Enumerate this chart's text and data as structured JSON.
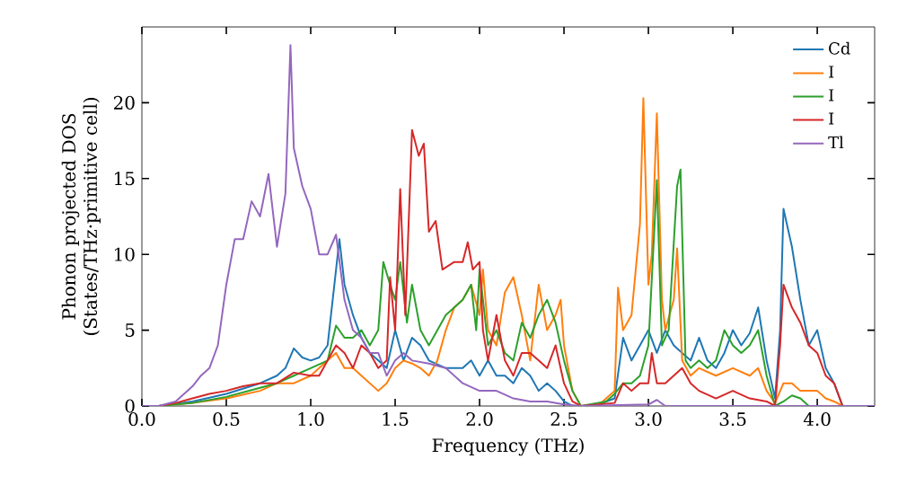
{
  "chart_data": {
    "type": "line",
    "xlabel": "Frequency (THz)",
    "ylabel": "Phonon projected DOS (States/THz·primitive cell)",
    "xlim": [
      0,
      4.34
    ],
    "ylim": [
      0,
      25
    ],
    "xticks": [
      {
        "value": 0,
        "label": "0.0"
      },
      0.5,
      {
        "value": 1,
        "label": "1.0"
      },
      1.5,
      {
        "value": 2,
        "label": "2.0"
      },
      2.5,
      {
        "value": 3,
        "label": "3.0"
      },
      3.5,
      {
        "value": 4,
        "label": "4.0"
      }
    ],
    "yticks": [
      0,
      5,
      10,
      15,
      20
    ],
    "legend": "top right",
    "grid": false,
    "marker": "none",
    "line_style": "solid",
    "series": [
      {
        "name": "Cd",
        "color": "#1f77b4",
        "x": [
          0,
          0.1,
          0.3,
          0.5,
          0.7,
          0.8,
          0.85,
          0.9,
          0.95,
          1.0,
          1.05,
          1.1,
          1.15,
          1.17,
          1.2,
          1.25,
          1.3,
          1.35,
          1.4,
          1.45,
          1.5,
          1.55,
          1.6,
          1.65,
          1.7,
          1.8,
          1.9,
          1.95,
          2.0,
          2.05,
          2.1,
          2.15,
          2.2,
          2.25,
          2.3,
          2.35,
          2.4,
          2.45,
          2.5,
          2.55,
          2.7,
          2.75,
          2.8,
          2.85,
          2.9,
          2.95,
          3.0,
          3.05,
          3.1,
          3.15,
          3.2,
          3.25,
          3.3,
          3.35,
          3.4,
          3.45,
          3.5,
          3.55,
          3.6,
          3.65,
          3.7,
          3.75,
          3.78,
          3.8,
          3.85,
          3.9,
          3.95,
          4.0,
          4.05,
          4.1,
          4.15,
          4.34
        ],
        "values": [
          0,
          0,
          0.3,
          0.8,
          1.5,
          2,
          2.5,
          3.8,
          3.2,
          3,
          3.2,
          4,
          9,
          11,
          8,
          6,
          4.5,
          3.5,
          3,
          2.5,
          5,
          3,
          4.5,
          4,
          3,
          2.5,
          2.5,
          3,
          2,
          3,
          2,
          2,
          1.5,
          2.5,
          2,
          1,
          1.5,
          1,
          0.3,
          0,
          0,
          0.3,
          0.5,
          4.5,
          3,
          4,
          5,
          3.5,
          5,
          4,
          3.5,
          3,
          4.5,
          3,
          2.5,
          3.5,
          5,
          4,
          4.8,
          6.5,
          3,
          0.5,
          5,
          13,
          10.5,
          7,
          4,
          5,
          2.5,
          1.5,
          0,
          0
        ]
      },
      {
        "name": "I",
        "color": "#ff7f0e",
        "x": [
          0,
          0.1,
          0.3,
          0.5,
          0.7,
          0.8,
          0.9,
          1.0,
          1.1,
          1.15,
          1.2,
          1.25,
          1.3,
          1.35,
          1.4,
          1.45,
          1.5,
          1.55,
          1.6,
          1.65,
          1.7,
          1.75,
          1.8,
          1.85,
          1.9,
          1.95,
          2.0,
          2.02,
          2.05,
          2.1,
          2.15,
          2.2,
          2.25,
          2.3,
          2.35,
          2.4,
          2.45,
          2.48,
          2.5,
          2.55,
          2.6,
          2.7,
          2.75,
          2.8,
          2.82,
          2.85,
          2.9,
          2.95,
          2.97,
          3.0,
          3.02,
          3.05,
          3.08,
          3.1,
          3.15,
          3.17,
          3.2,
          3.25,
          3.3,
          3.4,
          3.5,
          3.6,
          3.65,
          3.7,
          3.75,
          3.8,
          3.85,
          3.9,
          4.0,
          4.05,
          4.1,
          4.15,
          4.34
        ],
        "values": [
          0,
          0,
          0.2,
          0.5,
          1,
          1.5,
          1.5,
          2,
          3,
          3.5,
          2.5,
          2.5,
          2,
          1.5,
          1,
          1.5,
          2.5,
          3,
          2.8,
          2.5,
          2,
          3,
          5,
          6.5,
          7,
          8,
          6,
          9,
          5,
          4,
          7.5,
          8.5,
          6,
          3,
          8,
          5,
          6,
          7,
          4,
          1,
          0,
          0,
          0.5,
          1,
          7.8,
          5,
          6,
          12,
          20.3,
          8,
          10,
          19.3,
          7,
          5,
          7,
          10.4,
          3,
          2,
          2.5,
          2,
          2.5,
          2,
          2.5,
          1,
          0.2,
          1.5,
          1.5,
          1,
          1,
          0.5,
          0.3,
          0,
          0
        ]
      },
      {
        "name": "I",
        "color": "#2ca02c",
        "x": [
          0,
          0.1,
          0.3,
          0.5,
          0.7,
          0.8,
          0.9,
          1.0,
          1.1,
          1.15,
          1.2,
          1.25,
          1.3,
          1.35,
          1.4,
          1.43,
          1.47,
          1.5,
          1.53,
          1.57,
          1.6,
          1.65,
          1.7,
          1.8,
          1.9,
          1.95,
          1.98,
          2.0,
          2.05,
          2.1,
          2.15,
          2.2,
          2.25,
          2.3,
          2.35,
          2.4,
          2.45,
          2.5,
          2.55,
          2.6,
          2.75,
          2.8,
          2.85,
          2.9,
          2.95,
          3.0,
          3.05,
          3.08,
          3.12,
          3.17,
          3.19,
          3.22,
          3.25,
          3.3,
          3.35,
          3.4,
          3.45,
          3.5,
          3.55,
          3.6,
          3.65,
          3.7,
          3.75,
          3.8,
          3.85,
          3.9,
          3.95,
          4.34
        ],
        "values": [
          0,
          0,
          0.2,
          0.6,
          1.2,
          1.5,
          2,
          2.5,
          3,
          5.3,
          4.5,
          4.5,
          5,
          4,
          5,
          9.5,
          8,
          7,
          9.5,
          5.5,
          8,
          5,
          4,
          6,
          7,
          8,
          5,
          9,
          4,
          5,
          3.5,
          3,
          5.5,
          4.5,
          6,
          7,
          5.5,
          3,
          1,
          0,
          0.3,
          0.8,
          1.5,
          1.5,
          2,
          4,
          14.9,
          4,
          5,
          14.5,
          15.6,
          3,
          2.5,
          3,
          2.5,
          3,
          5,
          4,
          3.5,
          4,
          5,
          2,
          0,
          0.3,
          0.7,
          0.5,
          0,
          0
        ]
      },
      {
        "name": "I",
        "color": "#d62728",
        "x": [
          0,
          0.1,
          0.2,
          0.3,
          0.4,
          0.5,
          0.6,
          0.7,
          0.8,
          0.9,
          1.0,
          1.05,
          1.1,
          1.15,
          1.2,
          1.25,
          1.3,
          1.35,
          1.4,
          1.45,
          1.47,
          1.5,
          1.53,
          1.56,
          1.6,
          1.64,
          1.67,
          1.7,
          1.74,
          1.78,
          1.85,
          1.9,
          1.93,
          1.96,
          2.0,
          2.02,
          2.05,
          2.1,
          2.15,
          2.2,
          2.25,
          2.3,
          2.35,
          2.4,
          2.45,
          2.5,
          2.55,
          2.6,
          2.8,
          2.85,
          2.9,
          2.95,
          3.0,
          3.02,
          3.05,
          3.1,
          3.15,
          3.2,
          3.25,
          3.3,
          3.4,
          3.5,
          3.6,
          3.7,
          3.75,
          3.78,
          3.8,
          3.85,
          3.9,
          3.95,
          4.0,
          4.05,
          4.1,
          4.15,
          4.34
        ],
        "values": [
          0,
          0,
          0.2,
          0.5,
          0.8,
          1,
          1.3,
          1.5,
          1.5,
          2.2,
          2,
          2,
          3,
          4,
          3.5,
          2.5,
          4,
          3.5,
          2.5,
          3,
          8.5,
          5,
          14.3,
          6,
          18.2,
          16.5,
          17.3,
          11.5,
          12.2,
          9,
          9.5,
          9.5,
          10.8,
          9,
          9.5,
          5,
          3,
          6,
          3,
          2,
          3.5,
          3.5,
          3,
          2.5,
          4,
          1.5,
          0.3,
          0,
          0.2,
          1.5,
          1,
          1.5,
          1.5,
          3.5,
          1.5,
          1.5,
          2,
          2.5,
          1.5,
          1,
          0.5,
          1,
          0.5,
          0.3,
          0,
          4,
          8,
          6.5,
          5.5,
          4,
          3.5,
          2,
          1.5,
          0,
          0
        ]
      },
      {
        "name": "Tl",
        "color": "#9467bd",
        "x": [
          0,
          0.1,
          0.2,
          0.3,
          0.35,
          0.4,
          0.45,
          0.5,
          0.55,
          0.6,
          0.65,
          0.7,
          0.75,
          0.8,
          0.85,
          0.88,
          0.9,
          0.95,
          1.0,
          1.05,
          1.1,
          1.15,
          1.2,
          1.25,
          1.3,
          1.35,
          1.4,
          1.45,
          1.5,
          1.55,
          1.6,
          1.7,
          1.8,
          1.9,
          2.0,
          2.1,
          2.2,
          2.3,
          2.4,
          2.5,
          2.6,
          3.0,
          3.05,
          3.1,
          4.34
        ],
        "values": [
          0,
          0,
          0.3,
          1.3,
          2,
          2.5,
          4,
          8,
          11,
          11,
          13.5,
          12.5,
          15.3,
          10.5,
          14,
          23.8,
          17,
          14.5,
          13,
          10,
          10,
          11.3,
          7,
          5,
          4.5,
          3.5,
          3.5,
          2,
          3,
          3.5,
          3,
          2.8,
          2.5,
          1.5,
          1,
          1,
          0.5,
          0.3,
          0.3,
          0.1,
          0,
          0.1,
          0.4,
          0,
          0
        ]
      }
    ]
  }
}
